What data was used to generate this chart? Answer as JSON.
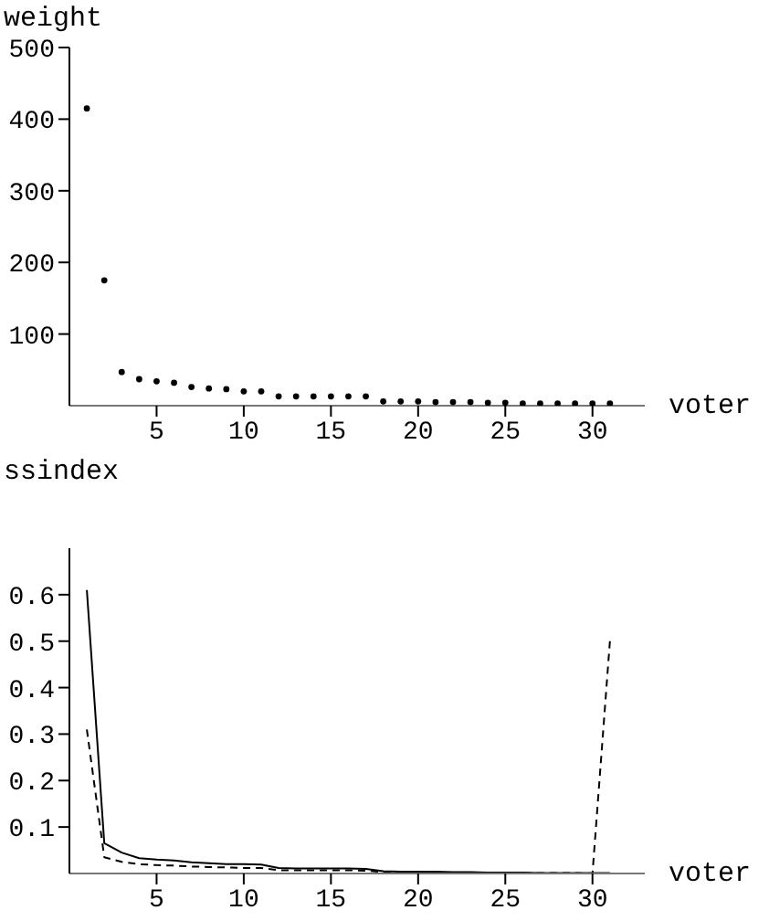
{
  "chart_data": [
    {
      "type": "scatter",
      "ylabel": "weight",
      "xlabel": "voter",
      "x": [
        1,
        2,
        3,
        4,
        5,
        6,
        7,
        8,
        9,
        10,
        11,
        12,
        13,
        14,
        15,
        16,
        17,
        18,
        19,
        20,
        21,
        22,
        23,
        24,
        25,
        26,
        27,
        28,
        29,
        30,
        31
      ],
      "series": [
        {
          "color": "#000000",
          "values": [
            415,
            175,
            47,
            37,
            34,
            32,
            26,
            24,
            23,
            20,
            20,
            13,
            13,
            13,
            13,
            13,
            13,
            6,
            6,
            6,
            5,
            5,
            5,
            4,
            4,
            3,
            3,
            3,
            3,
            3,
            3
          ]
        }
      ],
      "marker": "circle",
      "xlim": [
        0,
        33
      ],
      "xticks": [
        5,
        10,
        15,
        20,
        25,
        30
      ],
      "ylim": [
        0,
        500
      ],
      "yticks": [
        100,
        200,
        300,
        400,
        500
      ],
      "grid": false
    },
    {
      "type": "line",
      "ylabel": "ssindex",
      "xlabel": "voter",
      "x": [
        1,
        2,
        3,
        4,
        5,
        6,
        7,
        8,
        9,
        10,
        11,
        12,
        13,
        14,
        15,
        16,
        17,
        18,
        19,
        20,
        21,
        22,
        23,
        24,
        25,
        26,
        27,
        28,
        29,
        30,
        31
      ],
      "series": [
        {
          "color": "#000000",
          "line_style": "solid",
          "values": [
            0.61,
            0.065,
            0.045,
            0.033,
            0.03,
            0.028,
            0.024,
            0.022,
            0.02,
            0.02,
            0.019,
            0.012,
            0.011,
            0.011,
            0.011,
            0.011,
            0.01,
            0.005,
            0.004,
            0.004,
            0.004,
            0.003,
            0.003,
            0.002,
            0.002,
            0.002,
            0.001,
            0.001,
            0.001,
            0.001,
            0.001
          ]
        },
        {
          "color": "#000000",
          "line_style": "dashed",
          "values": [
            0.31,
            0.035,
            0.025,
            0.02,
            0.018,
            0.017,
            0.015,
            0.014,
            0.013,
            0.012,
            0.012,
            0.007,
            0.007,
            0.007,
            0.007,
            0.007,
            0.006,
            0.003,
            0.003,
            0.002,
            0.002,
            0.002,
            0.002,
            0.001,
            0.001,
            0.001,
            0.001,
            0.001,
            0.001,
            0,
            0.5
          ]
        }
      ],
      "marker": "none",
      "xlim": [
        0,
        33
      ],
      "xticks": [
        5,
        10,
        15,
        20,
        25,
        30
      ],
      "ylim": [
        0,
        0.7
      ],
      "yticks": [
        0.1,
        0.2,
        0.3,
        0.4,
        0.5,
        0.6
      ],
      "grid": false
    }
  ]
}
